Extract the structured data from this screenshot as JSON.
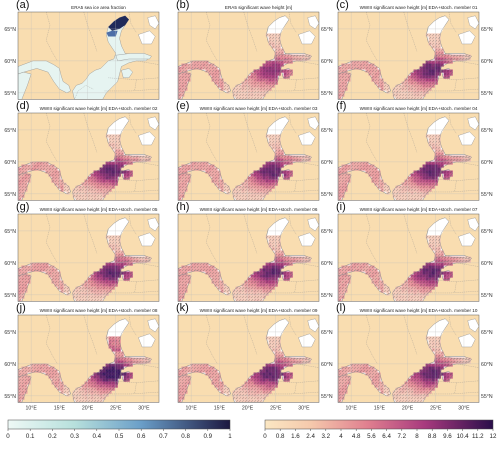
{
  "panels": [
    {
      "letter": "(a)",
      "title": "ERA5 sea ice area fraction",
      "field": "ice"
    },
    {
      "letter": "(b)",
      "title": "ERA5 significant wave height [m]",
      "field": "era5"
    },
    {
      "letter": "(c)",
      "title": "WWIII significant wave height [m] EDA+stoch. member 01",
      "field": "m01"
    },
    {
      "letter": "(d)",
      "title": "WWIII significant wave height [m] EDA+stoch. member 02",
      "field": "m02"
    },
    {
      "letter": "(e)",
      "title": "WWIII significant wave height [m] EDA+stoch. member 03",
      "field": "m03"
    },
    {
      "letter": "(f)",
      "title": "WWIII significant wave height [m] EDA+stoch. member 04",
      "field": "m04"
    },
    {
      "letter": "(g)",
      "title": "WWIII significant wave height [m] EDA+stoch. member 05",
      "field": "m05"
    },
    {
      "letter": "(h)",
      "title": "WWIII significant wave height [m] EDA+stoch. member 06",
      "field": "m06"
    },
    {
      "letter": "(i)",
      "title": "WWIII significant wave height [m] EDA+stoch. member 07",
      "field": "m07"
    },
    {
      "letter": "(j)",
      "title": "WWIII significant wave height [m] EDA+stoch. member 08",
      "field": "m08"
    },
    {
      "letter": "(k)",
      "title": "WWIII significant wave height [m] EDA+stoch. member 09",
      "field": "m09"
    },
    {
      "letter": "(l)",
      "title": "WWIII significant wave height [m] EDA+stoch. member 10",
      "field": "m10"
    }
  ],
  "lat_labels": [
    "65°N",
    "60°N",
    "55°N"
  ],
  "lon_labels": [
    "10°E",
    "15°E",
    "20°E",
    "25°E",
    "30°E"
  ],
  "colors": {
    "land": "#f9ddb0",
    "border": "#8a8a8a",
    "grid": "#bbbbbb",
    "ice_low": "#e8f6f4",
    "ice_high": "#222255",
    "wave_low": "#f6c8b8",
    "wave_mid": "#c0407a",
    "wave_high": "#3a1660"
  },
  "colorbars": [
    {
      "name": "ice",
      "ticks": [
        "0",
        "0.1",
        "0.2",
        "0.3",
        "0.4",
        "0.5",
        "0.6",
        "0.7",
        "0.8",
        "0.9",
        "1"
      ]
    },
    {
      "name": "wave",
      "ticks": [
        "0",
        "0.8",
        "1.6",
        "2.4",
        "3.2",
        "4",
        "4.8",
        "5.6",
        "6.4",
        "7.2",
        "8",
        "8.8",
        "9.6",
        "10.4",
        "11.2",
        "12"
      ]
    }
  ]
}
